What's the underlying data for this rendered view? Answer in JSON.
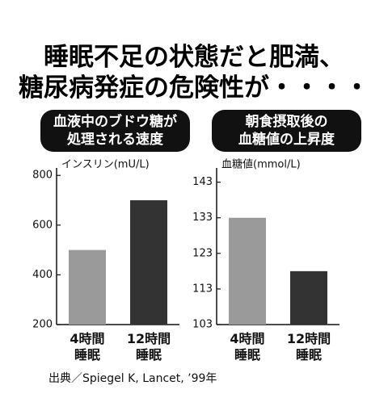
{
  "title": "睡眠不足の状態だと肥満、\n糖尿病発症の危険性が・・・・",
  "source": "出典／Spiegel K, Lancet, ’99年",
  "chart_data": [
    {
      "type": "bar",
      "title": "血液中のブドウ糖が\n処理される速度",
      "y_label": "インスリン(mU/L)",
      "categories": [
        "4時間\n睡眠",
        "12時間\n睡眠"
      ],
      "values": [
        500,
        700
      ],
      "colors": [
        "#9a9a9a",
        "#333333"
      ],
      "ylim": [
        200,
        830
      ],
      "yticks": [
        200,
        400,
        600,
        800
      ]
    },
    {
      "type": "bar",
      "title": "朝食摂取後の\n血糖値の上昇度",
      "y_label": "血糖値(mmol/L)",
      "categories": [
        "4時間\n睡眠",
        "12時間\n睡眠"
      ],
      "values": [
        133,
        118
      ],
      "colors": [
        "#9a9a9a",
        "#333333"
      ],
      "ylim": [
        103,
        147
      ],
      "yticks": [
        103,
        113,
        123,
        133,
        143
      ]
    }
  ]
}
